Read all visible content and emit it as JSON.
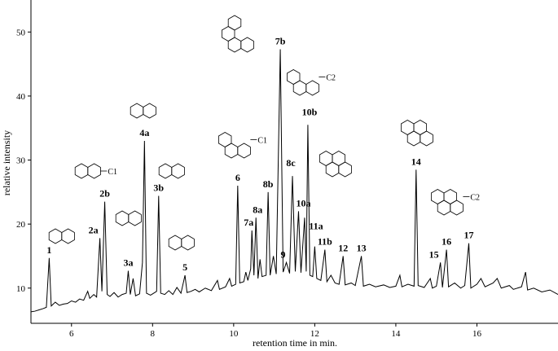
{
  "chart_data": {
    "type": "line",
    "x_label": "retention time in min.",
    "y_label": "relative intensity",
    "color": "#000000",
    "xlim": [
      5,
      18
    ],
    "ylim": [
      4.5,
      55
    ],
    "xticks": [
      6,
      8,
      10,
      12,
      14,
      16
    ],
    "yticks": [
      10,
      20,
      30,
      40,
      50
    ],
    "x": [
      5.0,
      5.1,
      5.2,
      5.3,
      5.38,
      5.45,
      5.5,
      5.6,
      5.7,
      5.8,
      5.9,
      6.0,
      6.1,
      6.2,
      6.3,
      6.4,
      6.45,
      6.55,
      6.62,
      6.7,
      6.75,
      6.82,
      6.88,
      6.95,
      7.05,
      7.15,
      7.25,
      7.35,
      7.4,
      7.45,
      7.52,
      7.58,
      7.68,
      7.75,
      7.8,
      7.85,
      7.95,
      8.05,
      8.1,
      8.15,
      8.2,
      8.3,
      8.4,
      8.5,
      8.6,
      8.7,
      8.8,
      8.85,
      8.95,
      9.05,
      9.15,
      9.3,
      9.45,
      9.6,
      9.65,
      9.8,
      9.9,
      9.95,
      10.05,
      10.1,
      10.15,
      10.25,
      10.3,
      10.35,
      10.42,
      10.45,
      10.5,
      10.55,
      10.6,
      10.65,
      10.7,
      10.8,
      10.85,
      10.9,
      10.98,
      11.05,
      11.15,
      11.22,
      11.3,
      11.38,
      11.45,
      11.52,
      11.6,
      11.66,
      11.75,
      11.79,
      11.83,
      11.88,
      11.95,
      12.0,
      12.05,
      12.15,
      12.25,
      12.3,
      12.4,
      12.5,
      12.6,
      12.7,
      12.75,
      12.9,
      13.0,
      13.15,
      13.2,
      13.35,
      13.5,
      13.7,
      13.85,
      14.0,
      14.1,
      14.15,
      14.3,
      14.45,
      14.5,
      14.55,
      14.7,
      14.85,
      14.9,
      15.0,
      15.1,
      15.15,
      15.25,
      15.3,
      15.45,
      15.6,
      15.7,
      15.8,
      15.85,
      16.0,
      16.1,
      16.2,
      16.4,
      16.5,
      16.6,
      16.8,
      16.9,
      17.1,
      17.2,
      17.25,
      17.4,
      17.6,
      17.8,
      18.0
    ],
    "values": [
      6.3,
      6.4,
      6.6,
      6.8,
      7.0,
      14.7,
      7.2,
      7.8,
      7.3,
      7.5,
      7.6,
      8.0,
      7.8,
      8.3,
      8.1,
      9.5,
      8.4,
      9.0,
      8.6,
      17.8,
      9.5,
      23.5,
      9.0,
      8.7,
      9.3,
      8.6,
      9.0,
      9.2,
      12.7,
      9.0,
      11.5,
      8.8,
      9.1,
      14.0,
      33.0,
      9.2,
      8.9,
      9.3,
      9.5,
      24.4,
      9.2,
      9.0,
      9.6,
      9.0,
      10.1,
      9.2,
      12.0,
      9.3,
      9.5,
      9.8,
      9.4,
      10.0,
      9.6,
      11.2,
      9.8,
      10.2,
      11.5,
      10.3,
      10.6,
      26.0,
      10.8,
      11.0,
      12.5,
      11.2,
      13.0,
      19.0,
      12.0,
      21.0,
      11.5,
      14.5,
      11.8,
      12.0,
      25.0,
      12.0,
      15.0,
      12.2,
      47.3,
      12.5,
      14.0,
      12.3,
      27.5,
      12.6,
      22.0,
      12.4,
      21.0,
      12.6,
      35.5,
      12.0,
      11.8,
      16.5,
      11.5,
      11.2,
      16.0,
      11.0,
      12.0,
      10.8,
      10.6,
      15.0,
      10.5,
      10.8,
      10.4,
      15.0,
      10.3,
      10.6,
      10.2,
      10.5,
      10.1,
      10.3,
      12.0,
      10.2,
      10.6,
      10.3,
      28.5,
      10.4,
      10.1,
      11.5,
      10.0,
      10.3,
      14.0,
      10.1,
      16.0,
      10.2,
      10.8,
      10.0,
      10.4,
      17.0,
      10.0,
      10.6,
      11.5,
      10.2,
      10.8,
      11.5,
      10.0,
      10.4,
      9.8,
      10.2,
      12.5,
      9.7,
      10.0,
      9.4,
      9.7,
      9.0
    ],
    "annotations": [
      {
        "text": "1",
        "x": 5.45
      },
      {
        "text": "2a",
        "x": 6.7
      },
      {
        "text": "2b",
        "x": 6.82
      },
      {
        "text": "3a",
        "x": 7.4
      },
      {
        "text": "4a",
        "x": 7.8
      },
      {
        "text": "3b",
        "x": 8.15
      },
      {
        "text": "5",
        "x": 8.8
      },
      {
        "text": "6",
        "x": 10.1
      },
      {
        "text": "7a",
        "x": 10.45
      },
      {
        "text": "8a",
        "x": 10.55
      },
      {
        "text": "8b",
        "x": 10.85
      },
      {
        "text": "7b",
        "x": 11.15
      },
      {
        "text": "9",
        "x": 11.3
      },
      {
        "text": "8c",
        "x": 11.45
      },
      {
        "text": "10a",
        "x": 11.6
      },
      {
        "text": "11a",
        "x": 11.75
      },
      {
        "text": "10b",
        "x": 11.83
      },
      {
        "text": "11b",
        "x": 12.25
      },
      {
        "text": "12",
        "x": 12.7
      },
      {
        "text": "13",
        "x": 13.15
      },
      {
        "text": "14",
        "x": 14.5
      },
      {
        "text": "15",
        "x": 15.1
      },
      {
        "text": "16",
        "x": 15.25
      },
      {
        "text": "17",
        "x": 15.8
      }
    ],
    "structure_labels": [
      "C1",
      "C1",
      "C2",
      "C2"
    ]
  }
}
